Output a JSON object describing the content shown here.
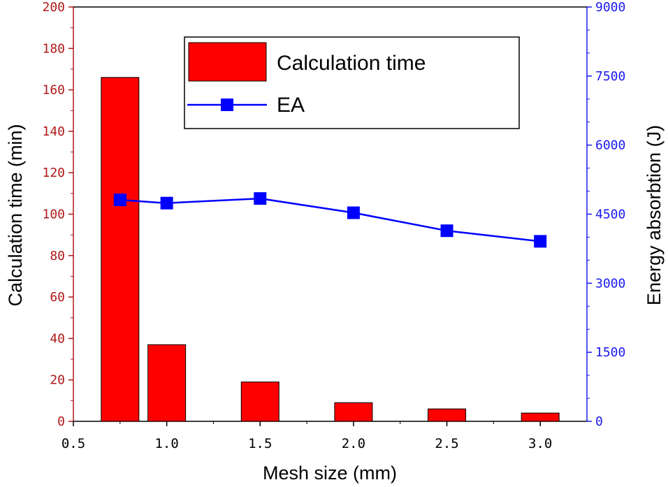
{
  "chart_data": {
    "type": "bar+line",
    "x_label": "Mesh size (mm)",
    "x_ticks": [
      "0.5",
      "1.0",
      "1.5",
      "2.0",
      "2.5",
      "3.0"
    ],
    "x_range": [
      0.5,
      3.25
    ],
    "categories": [
      0.75,
      1.0,
      1.5,
      2.0,
      2.5,
      3.0
    ],
    "left_axis": {
      "label": "Calculation time (min)",
      "range": [
        0,
        200
      ],
      "ticks": [
        "0",
        "20",
        "40",
        "60",
        "80",
        "100",
        "120",
        "140",
        "160",
        "180",
        "200"
      ],
      "color": "#b01818"
    },
    "right_axis": {
      "label": "Energy absorbtion (J)",
      "range": [
        0,
        9000
      ],
      "ticks": [
        "0",
        "1500",
        "3000",
        "4500",
        "6000",
        "7500",
        "9000"
      ],
      "color": "#1a1aee"
    },
    "series": [
      {
        "name": "Calculation time",
        "type": "bar",
        "axis": "left",
        "color": "#ff0000",
        "values": [
          166,
          37,
          19,
          9,
          6,
          4
        ]
      },
      {
        "name": "EA",
        "type": "line",
        "axis": "right",
        "color": "#0000ff",
        "values": [
          4810,
          4740,
          4840,
          4530,
          4140,
          3910
        ]
      }
    ],
    "legend": {
      "position": "top-center",
      "entries": [
        "Calculation time",
        "EA"
      ]
    }
  }
}
